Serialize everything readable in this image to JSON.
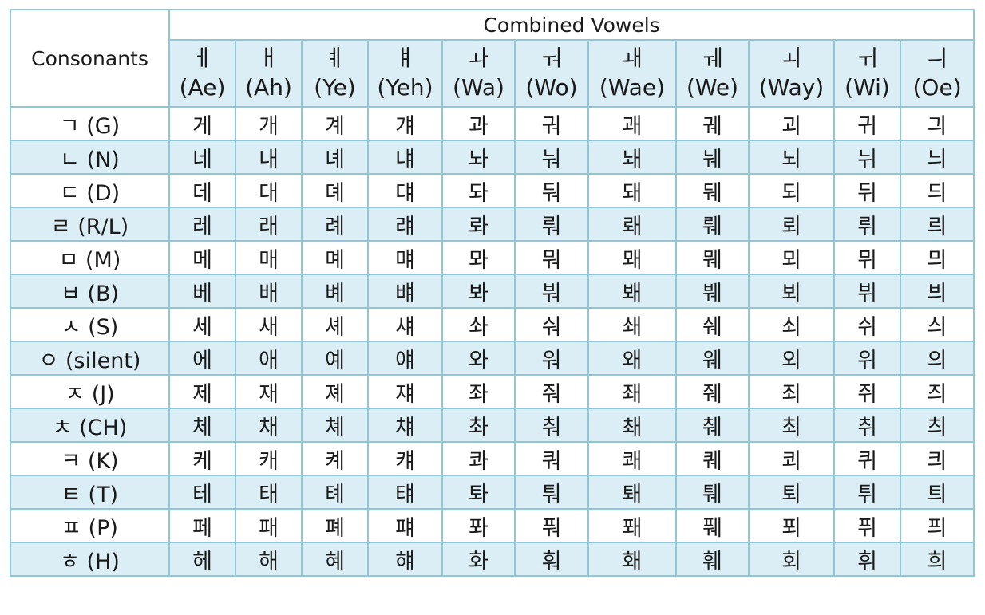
{
  "table": {
    "consonants_header": "Consonants",
    "combined_header": "Combined Vowels",
    "vowels": [
      {
        "char": "ㅔ",
        "rom": "(Ae)"
      },
      {
        "char": "ㅐ",
        "rom": "(Ah)"
      },
      {
        "char": "ㅖ",
        "rom": "(Ye)"
      },
      {
        "char": "ㅒ",
        "rom": "(Yeh)"
      },
      {
        "char": "ㅘ",
        "rom": "(Wa)"
      },
      {
        "char": "ㅝ",
        "rom": "(Wo)"
      },
      {
        "char": "ㅙ",
        "rom": "(Wae)"
      },
      {
        "char": "ㅞ",
        "rom": "(We)"
      },
      {
        "char": "ㅚ",
        "rom": "(Way)"
      },
      {
        "char": "ㅟ",
        "rom": "(Wi)"
      },
      {
        "char": "ㅢ",
        "rom": "(Oe)"
      }
    ],
    "rows": [
      {
        "consonant": "ㄱ (G)",
        "cells": [
          "게",
          "개",
          "계",
          "걔",
          "과",
          "궈",
          "괘",
          "궤",
          "괴",
          "귀",
          "긔"
        ]
      },
      {
        "consonant": "ㄴ (N)",
        "cells": [
          "네",
          "내",
          "녜",
          "냬",
          "놔",
          "눠",
          "놰",
          "눼",
          "뇌",
          "뉘",
          "늬"
        ]
      },
      {
        "consonant": "ㄷ (D)",
        "cells": [
          "데",
          "대",
          "뎨",
          "댸",
          "돠",
          "둬",
          "돼",
          "뒈",
          "되",
          "뒤",
          "듸"
        ]
      },
      {
        "consonant": "ㄹ (R/L)",
        "cells": [
          "레",
          "래",
          "례",
          "럐",
          "롸",
          "뤄",
          "뢔",
          "뤠",
          "뢰",
          "뤼",
          "릐"
        ]
      },
      {
        "consonant": "ㅁ (M)",
        "cells": [
          "메",
          "매",
          "몌",
          "먜",
          "뫄",
          "뭐",
          "뫠",
          "뭬",
          "뫼",
          "뮈",
          "믜"
        ]
      },
      {
        "consonant": "ㅂ (B)",
        "cells": [
          "베",
          "배",
          "볘",
          "뱨",
          "봐",
          "붜",
          "봬",
          "붸",
          "뵈",
          "뷔",
          "븨"
        ]
      },
      {
        "consonant": "ㅅ (S)",
        "cells": [
          "세",
          "새",
          "셰",
          "섀",
          "솨",
          "숴",
          "쇄",
          "쉐",
          "쇠",
          "쉬",
          "싀"
        ]
      },
      {
        "consonant": "ㅇ (silent)",
        "cells": [
          "에",
          "애",
          "예",
          "얘",
          "와",
          "워",
          "왜",
          "웨",
          "외",
          "위",
          "의"
        ]
      },
      {
        "consonant": "ㅈ (J)",
        "cells": [
          "제",
          "재",
          "졔",
          "쟤",
          "좌",
          "줘",
          "좨",
          "줴",
          "죄",
          "쥐",
          "즤"
        ]
      },
      {
        "consonant": "ㅊ (CH)",
        "cells": [
          "체",
          "채",
          "쳬",
          "챼",
          "촤",
          "춰",
          "쵀",
          "췌",
          "최",
          "취",
          "츼"
        ]
      },
      {
        "consonant": "ㅋ (K)",
        "cells": [
          "케",
          "캐",
          "켸",
          "컈",
          "콰",
          "쿼",
          "쾌",
          "퀘",
          "쾨",
          "퀴",
          "킈"
        ]
      },
      {
        "consonant": "ㅌ (T)",
        "cells": [
          "테",
          "태",
          "톄",
          "턔",
          "톼",
          "퉈",
          "퇘",
          "퉤",
          "퇴",
          "튀",
          "틔"
        ]
      },
      {
        "consonant": "ㅍ (P)",
        "cells": [
          "페",
          "패",
          "폐",
          "퍠",
          "퐈",
          "풔",
          "퐤",
          "풰",
          "푀",
          "퓌",
          "픠"
        ]
      },
      {
        "consonant": "ㅎ (H)",
        "cells": [
          "헤",
          "해",
          "혜",
          "햬",
          "화",
          "훠",
          "홰",
          "훼",
          "회",
          "휘",
          "희"
        ]
      }
    ]
  }
}
